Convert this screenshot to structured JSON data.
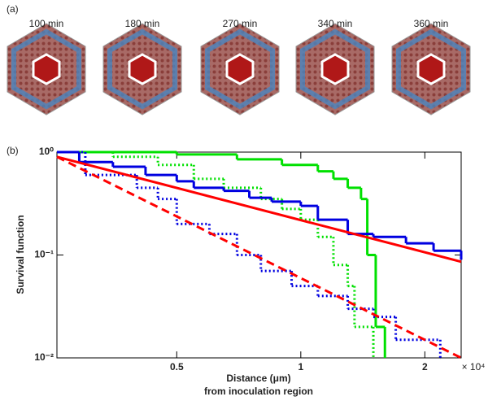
{
  "panel_a": {
    "label": "(a)",
    "times": [
      "100 min",
      "180 min",
      "270 min",
      "340 min",
      "360 min"
    ]
  },
  "chart_data": {
    "type": "line",
    "panel_label": "(b)",
    "y_label": "Survival function",
    "x_label": [
      "Distance (μm)",
      "from inoculation region"
    ],
    "x_multiplier": "× 10⁴",
    "xscale": "log",
    "yscale": "log",
    "xlim": [
      0.256,
      2.45
    ],
    "ylim": [
      0.01,
      1
    ],
    "xticks": [
      0.5,
      1,
      2
    ],
    "yticks": [
      {
        "value": 0.01,
        "label": "10⁻²"
      },
      {
        "value": 0.1,
        "label": "10⁻¹"
      },
      {
        "value": 1,
        "label": "10⁰"
      }
    ],
    "series": [
      {
        "color": "#00e000",
        "style": "solid",
        "step": true,
        "x": [
          0.256,
          0.4,
          0.5,
          0.7,
          0.9,
          1.1,
          1.2,
          1.3,
          1.4,
          1.45,
          1.52,
          1.6
        ],
        "values": [
          1,
          1,
          0.95,
          0.85,
          0.75,
          0.65,
          0.55,
          0.45,
          0.35,
          0.1,
          0.02,
          0.01
        ]
      },
      {
        "color": "#00e000",
        "style": "dotted",
        "step": true,
        "x": [
          0.256,
          0.35,
          0.45,
          0.55,
          0.65,
          0.8,
          0.9,
          1.0,
          1.1,
          1.2,
          1.3,
          1.35,
          1.5
        ],
        "values": [
          1,
          0.9,
          0.75,
          0.55,
          0.45,
          0.35,
          0.28,
          0.22,
          0.15,
          0.08,
          0.05,
          0.02,
          0.01
        ]
      },
      {
        "color": "#0000e0",
        "style": "solid",
        "step": true,
        "x": [
          0.256,
          0.29,
          0.35,
          0.42,
          0.5,
          0.55,
          0.65,
          0.75,
          0.85,
          1.0,
          1.1,
          1.3,
          1.5,
          1.8,
          2.1,
          2.45
        ],
        "values": [
          1,
          0.8,
          0.72,
          0.6,
          0.52,
          0.45,
          0.42,
          0.36,
          0.33,
          0.3,
          0.22,
          0.16,
          0.15,
          0.13,
          0.11,
          0.09
        ]
      },
      {
        "color": "#0000e0",
        "style": "dotted",
        "step": true,
        "x": [
          0.256,
          0.3,
          0.4,
          0.45,
          0.5,
          0.6,
          0.7,
          0.8,
          0.95,
          1.1,
          1.3,
          1.5,
          1.7,
          2.18
        ],
        "values": [
          1,
          0.6,
          0.45,
          0.35,
          0.2,
          0.16,
          0.1,
          0.07,
          0.05,
          0.04,
          0.03,
          0.025,
          0.015,
          0.01
        ]
      },
      {
        "color": "#ff0000",
        "style": "solid",
        "step": false,
        "x": [
          0.256,
          2.45
        ],
        "values": [
          0.9,
          0.086
        ]
      },
      {
        "color": "#ff0000",
        "style": "dashed",
        "step": false,
        "x": [
          0.256,
          2.45
        ],
        "values": [
          0.9,
          0.01
        ]
      }
    ]
  }
}
